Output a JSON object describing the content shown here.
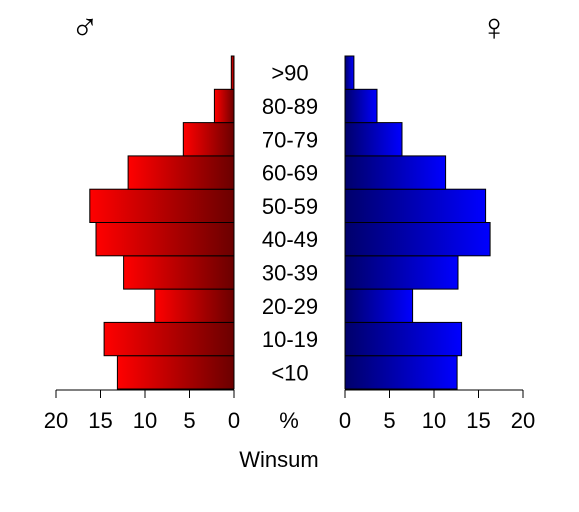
{
  "chart_data": {
    "type": "bar",
    "subtype": "population-pyramid",
    "categories": [
      "<10",
      "10-19",
      "20-29",
      "30-39",
      "40-49",
      "50-59",
      "60-69",
      "70-79",
      "80-89",
      ">90"
    ],
    "series": [
      {
        "key": "male",
        "symbol": "♂",
        "values": [
          13.1,
          14.6,
          8.9,
          12.4,
          15.5,
          16.2,
          11.9,
          5.7,
          2.2,
          0.3
        ],
        "color_light": "#ff0000",
        "color_dark": "#6b0000"
      },
      {
        "key": "female",
        "symbol": "♀",
        "values": [
          12.6,
          13.1,
          7.6,
          12.7,
          16.3,
          15.8,
          11.3,
          6.4,
          3.6,
          1.0
        ],
        "color_light": "#0000ff",
        "color_dark": "#00006b"
      }
    ],
    "xlim": [
      0,
      20
    ],
    "ticks": [
      0,
      5,
      10,
      15,
      20
    ],
    "percent_label": "%",
    "xlabel": "Winsum",
    "grid": false,
    "legend": "none"
  }
}
